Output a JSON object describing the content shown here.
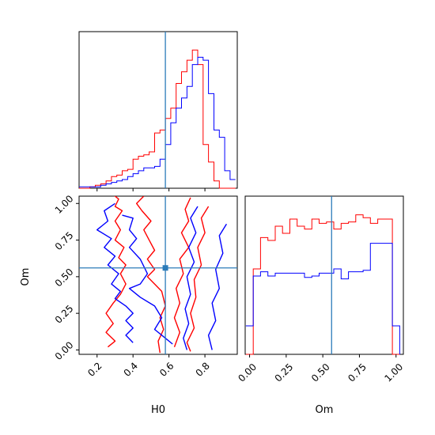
{
  "chart_data": {
    "type": "corner",
    "parameters": [
      "H0",
      "Om"
    ],
    "truth": {
      "H0": 0.58,
      "Om": 0.56
    },
    "colors": {
      "series_a": "#ff0000",
      "series_b": "#0000ff",
      "truth": "#2b7bb9"
    },
    "xlabel_h0": "H0",
    "xlabel_om": "Om",
    "ylabel_om": "Om",
    "h0_axis": {
      "range": [
        0.1,
        0.98
      ],
      "ticks": [
        0.2,
        0.4,
        0.6,
        0.8
      ],
      "tick_labels": [
        "0.2",
        "0.4",
        "0.6",
        "0.8"
      ]
    },
    "om_axis": {
      "range": [
        -0.03,
        1.05
      ],
      "ticks": [
        0.0,
        0.25,
        0.5,
        0.75,
        1.0
      ],
      "tick_labels": [
        "0.00",
        "0.25",
        "0.50",
        "0.75",
        "1.00"
      ]
    },
    "hist_h0": {
      "bins": [
        0.1,
        0.13,
        0.16,
        0.19,
        0.22,
        0.25,
        0.28,
        0.31,
        0.34,
        0.37,
        0.4,
        0.43,
        0.46,
        0.49,
        0.52,
        0.55,
        0.58,
        0.61,
        0.64,
        0.67,
        0.7,
        0.73,
        0.76,
        0.79,
        0.82,
        0.85,
        0.88,
        0.91,
        0.94,
        0.97
      ],
      "red": [
        0.0,
        0.0,
        0.01,
        0.02,
        0.03,
        0.05,
        0.08,
        0.09,
        0.12,
        0.13,
        0.2,
        0.22,
        0.23,
        0.25,
        0.38,
        0.4,
        0.48,
        0.55,
        0.72,
        0.8,
        0.88,
        0.95,
        0.85,
        0.3,
        0.18,
        0.05,
        0.0,
        0.0,
        0.0
      ],
      "blue": [
        0.01,
        0.01,
        0.01,
        0.01,
        0.02,
        0.03,
        0.04,
        0.05,
        0.06,
        0.08,
        0.1,
        0.12,
        0.14,
        0.14,
        0.15,
        0.2,
        0.3,
        0.45,
        0.55,
        0.62,
        0.7,
        0.85,
        0.9,
        0.88,
        0.65,
        0.4,
        0.35,
        0.12,
        0.06
      ]
    },
    "hist_om": {
      "bins": [
        0.0,
        0.05,
        0.1,
        0.15,
        0.2,
        0.25,
        0.3,
        0.35,
        0.4,
        0.45,
        0.5,
        0.55,
        0.6,
        0.65,
        0.7,
        0.75,
        0.8,
        0.85,
        0.9,
        0.95,
        1.0,
        1.05
      ],
      "red": [
        0.0,
        0.6,
        0.82,
        0.8,
        0.9,
        0.85,
        0.95,
        0.9,
        0.88,
        0.95,
        0.92,
        0.93,
        0.88,
        0.92,
        0.93,
        0.98,
        0.96,
        0.92,
        0.95,
        0.95,
        0.0
      ],
      "blue": [
        0.2,
        0.55,
        0.58,
        0.55,
        0.57,
        0.57,
        0.57,
        0.57,
        0.54,
        0.55,
        0.57,
        0.57,
        0.6,
        0.53,
        0.58,
        0.58,
        0.59,
        0.78,
        0.78,
        0.78,
        0.2
      ]
    },
    "contours_red": [
      [
        [
          0.28,
          1.07
        ],
        [
          0.32,
          1.03
        ],
        [
          0.3,
          0.98
        ],
        [
          0.34,
          0.95
        ],
        [
          0.3,
          0.88
        ],
        [
          0.33,
          0.82
        ],
        [
          0.3,
          0.75
        ],
        [
          0.35,
          0.7
        ],
        [
          0.32,
          0.63
        ],
        [
          0.36,
          0.58
        ],
        [
          0.33,
          0.52
        ],
        [
          0.36,
          0.45
        ],
        [
          0.33,
          0.38
        ],
        [
          0.29,
          0.32
        ],
        [
          0.25,
          0.25
        ],
        [
          0.29,
          0.18
        ],
        [
          0.25,
          0.12
        ],
        [
          0.3,
          0.06
        ],
        [
          0.26,
          0.02
        ]
      ],
      [
        [
          0.55,
          -0.02
        ],
        [
          0.54,
          0.06
        ],
        [
          0.57,
          0.14
        ],
        [
          0.55,
          0.22
        ],
        [
          0.58,
          0.3
        ],
        [
          0.56,
          0.4
        ],
        [
          0.52,
          0.45
        ],
        [
          0.48,
          0.5
        ],
        [
          0.52,
          0.55
        ],
        [
          0.48,
          0.62
        ],
        [
          0.52,
          0.68
        ],
        [
          0.49,
          0.75
        ],
        [
          0.46,
          0.82
        ],
        [
          0.5,
          0.88
        ],
        [
          0.45,
          0.95
        ],
        [
          0.42,
          1.0
        ],
        [
          0.46,
          1.05
        ]
      ],
      [
        [
          0.72,
          1.04
        ],
        [
          0.69,
          0.96
        ],
        [
          0.71,
          0.88
        ],
        [
          0.67,
          0.8
        ],
        [
          0.71,
          0.7
        ],
        [
          0.66,
          0.62
        ],
        [
          0.68,
          0.52
        ],
        [
          0.64,
          0.42
        ],
        [
          0.66,
          0.32
        ],
        [
          0.63,
          0.22
        ],
        [
          0.66,
          0.12
        ],
        [
          0.63,
          0.02
        ]
      ],
      [
        [
          0.82,
          0.98
        ],
        [
          0.78,
          0.9
        ],
        [
          0.8,
          0.8
        ],
        [
          0.76,
          0.7
        ],
        [
          0.78,
          0.58
        ],
        [
          0.74,
          0.48
        ],
        [
          0.75,
          0.36
        ],
        [
          0.72,
          0.25
        ],
        [
          0.74,
          0.15
        ],
        [
          0.7,
          0.05
        ],
        [
          0.72,
          -0.01
        ]
      ]
    ],
    "contours_blue": [
      [
        [
          0.3,
          1.0
        ],
        [
          0.24,
          0.95
        ],
        [
          0.26,
          0.88
        ],
        [
          0.2,
          0.82
        ],
        [
          0.28,
          0.76
        ],
        [
          0.24,
          0.7
        ],
        [
          0.3,
          0.64
        ],
        [
          0.26,
          0.58
        ],
        [
          0.32,
          0.52
        ],
        [
          0.28,
          0.45
        ],
        [
          0.33,
          0.4
        ],
        [
          0.3,
          0.35
        ],
        [
          0.36,
          0.3
        ],
        [
          0.4,
          0.25
        ],
        [
          0.36,
          0.2
        ],
        [
          0.4,
          0.15
        ],
        [
          0.36,
          0.1
        ],
        [
          0.4,
          0.05
        ]
      ],
      [
        [
          0.34,
          0.92
        ],
        [
          0.4,
          0.9
        ],
        [
          0.38,
          0.82
        ],
        [
          0.42,
          0.76
        ],
        [
          0.38,
          0.7
        ],
        [
          0.44,
          0.62
        ],
        [
          0.48,
          0.52
        ],
        [
          0.44,
          0.45
        ],
        [
          0.38,
          0.42
        ],
        [
          0.44,
          0.36
        ],
        [
          0.52,
          0.3
        ],
        [
          0.56,
          0.22
        ],
        [
          0.52,
          0.14
        ],
        [
          0.58,
          0.08
        ],
        [
          0.62,
          0.04
        ]
      ],
      [
        [
          0.76,
          0.98
        ],
        [
          0.72,
          0.9
        ],
        [
          0.75,
          0.8
        ],
        [
          0.71,
          0.7
        ],
        [
          0.74,
          0.6
        ],
        [
          0.7,
          0.5
        ],
        [
          0.72,
          0.38
        ],
        [
          0.69,
          0.28
        ],
        [
          0.71,
          0.18
        ],
        [
          0.68,
          0.08
        ],
        [
          0.7,
          0.0
        ]
      ],
      [
        [
          0.92,
          0.86
        ],
        [
          0.88,
          0.78
        ],
        [
          0.9,
          0.66
        ],
        [
          0.86,
          0.55
        ],
        [
          0.88,
          0.42
        ],
        [
          0.84,
          0.32
        ],
        [
          0.86,
          0.2
        ],
        [
          0.82,
          0.1
        ],
        [
          0.84,
          0.0
        ]
      ]
    ]
  }
}
